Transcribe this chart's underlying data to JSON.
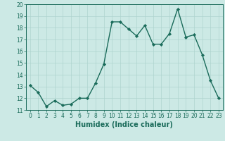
{
  "x": [
    0,
    1,
    2,
    3,
    4,
    5,
    6,
    7,
    8,
    9,
    10,
    11,
    12,
    13,
    14,
    15,
    16,
    17,
    18,
    19,
    20,
    21,
    22,
    23
  ],
  "y": [
    13.1,
    12.5,
    11.3,
    11.8,
    11.4,
    11.5,
    12.0,
    12.0,
    13.3,
    14.9,
    18.5,
    18.5,
    17.9,
    17.3,
    18.2,
    16.6,
    16.6,
    17.5,
    19.6,
    17.2,
    17.4,
    15.7,
    13.5,
    12.0
  ],
  "line_color": "#1a6b5a",
  "marker": "D",
  "marker_size": 2.2,
  "xlabel": "Humidex (Indice chaleur)",
  "ylim": [
    11,
    20
  ],
  "xlim": [
    -0.5,
    23.5
  ],
  "yticks": [
    11,
    12,
    13,
    14,
    15,
    16,
    17,
    18,
    19,
    20
  ],
  "xticks": [
    0,
    1,
    2,
    3,
    4,
    5,
    6,
    7,
    8,
    9,
    10,
    11,
    12,
    13,
    14,
    15,
    16,
    17,
    18,
    19,
    20,
    21,
    22,
    23
  ],
  "bg_color": "#cce9e5",
  "grid_color": "#aed4cf",
  "tick_label_fontsize": 5.5,
  "xlabel_fontsize": 7.0,
  "line_width": 1.0,
  "marker_color": "#1a6b5a"
}
